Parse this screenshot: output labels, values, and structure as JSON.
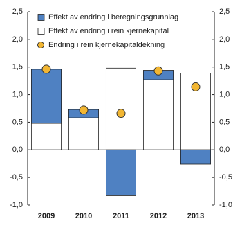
{
  "chart_data": {
    "type": "bar",
    "stacked": true,
    "categories": [
      "2009",
      "2010",
      "2011",
      "2012",
      "2013"
    ],
    "series": [
      {
        "name": "Effekt av endring i beregningsgrunnlag",
        "type": "bar",
        "color": "#4f81c2",
        "values": [
          0.98,
          0.15,
          -0.83,
          0.17,
          -0.26
        ]
      },
      {
        "name": "Effekt av endring i rein kjernekapital",
        "type": "bar",
        "color": "#ffffff",
        "values": [
          0.48,
          0.58,
          1.48,
          1.27,
          1.39
        ]
      },
      {
        "name": "Endring i rein kjernekapitaldekning",
        "type": "scatter",
        "color": "#f2b632",
        "values": [
          1.46,
          0.72,
          0.66,
          1.43,
          1.14
        ]
      }
    ],
    "ylim": [
      -1.0,
      2.5
    ],
    "yticks": [
      {
        "value": -1.0,
        "label": "-1,0"
      },
      {
        "value": -0.5,
        "label": "-0,5"
      },
      {
        "value": 0.0,
        "label": "0,0"
      },
      {
        "value": 0.5,
        "label": "0,5"
      },
      {
        "value": 1.0,
        "label": "1,0"
      },
      {
        "value": 1.5,
        "label": "1,5"
      },
      {
        "value": 2.0,
        "label": "2,0"
      },
      {
        "value": 2.5,
        "label": "2,5"
      }
    ],
    "y2lim": [
      -1.0,
      2.5
    ],
    "y2ticks": [
      {
        "value": -1.0,
        "label": "-1,0"
      },
      {
        "value": -0.5,
        "label": "-0,5"
      },
      {
        "value": 0.0,
        "label": "0,0"
      },
      {
        "value": 0.5,
        "label": "0,5"
      },
      {
        "value": 1.0,
        "label": "1,0"
      },
      {
        "value": 1.5,
        "label": "1,5"
      },
      {
        "value": 2.0,
        "label": "2,0"
      },
      {
        "value": 2.5,
        "label": "2,5"
      }
    ],
    "grid": false,
    "legend": "top-left"
  }
}
